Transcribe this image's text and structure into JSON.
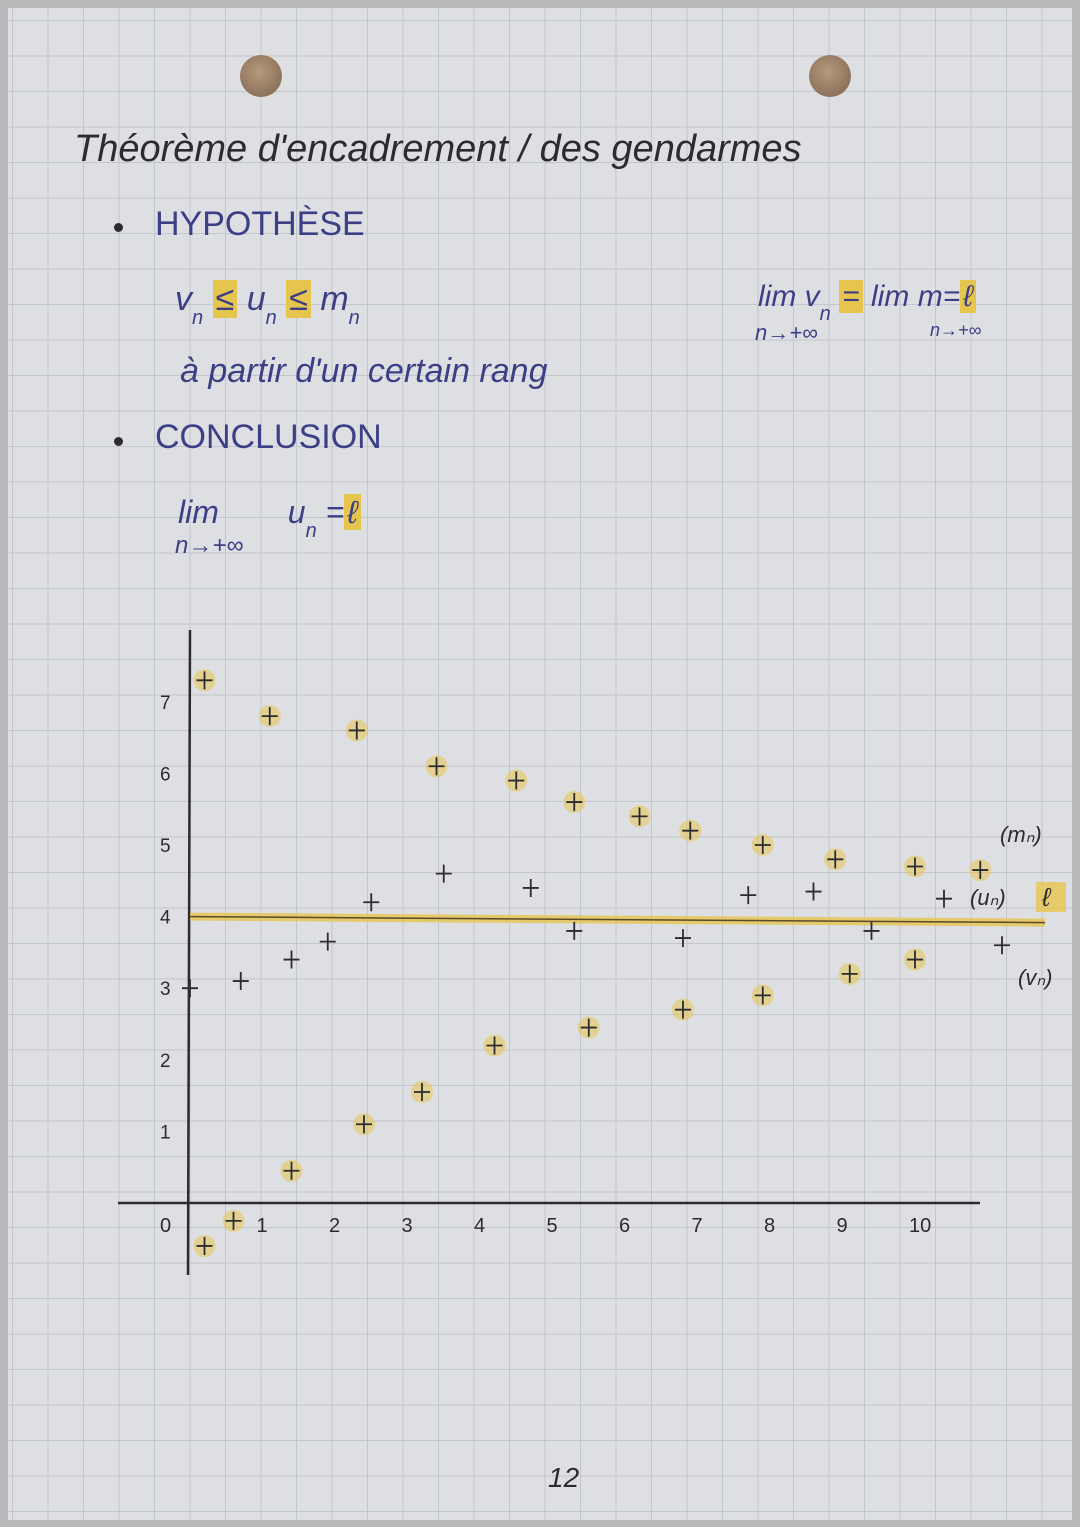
{
  "title": "Théorème d'encadrement / des gendarmes",
  "hypothesis": {
    "heading": "HYPOTHÈSE",
    "inequality": {
      "v": "v",
      "le1": "≤",
      "u": "u",
      "le2": "≤",
      "m": "m",
      "sub": "n"
    },
    "condition": "à partir d'un certain rang",
    "limits": {
      "lim1": "lim",
      "under1": "n→+∞",
      "v": "v",
      "sub": "n",
      "eq1": "=",
      "lim2": "lim",
      "under2": "n→+∞",
      "m": "m",
      "eq2": "=",
      "l": "ℓ"
    }
  },
  "conclusion": {
    "heading": "CONCLUSION",
    "lim": "lim",
    "under": "n→+∞",
    "u": "u",
    "sub": "n",
    "eq": "=",
    "l": "ℓ"
  },
  "page_number": "12",
  "colors": {
    "ink": "#2b2b30",
    "blue_ink": "#3b3f86",
    "highlight": "#e6c54e"
  },
  "chart_data": {
    "type": "scatter",
    "xlim": [
      0,
      11.2
    ],
    "ylim": [
      -1,
      7.8
    ],
    "x_ticks": [
      "0",
      "1",
      "2",
      "3",
      "4",
      "5",
      "6",
      "7",
      "8",
      "9",
      "10"
    ],
    "y_ticks": [
      "1",
      "2",
      "3",
      "4",
      "5",
      "6",
      "7"
    ],
    "limit_line": {
      "y": 4,
      "label": "ℓ"
    },
    "series": [
      {
        "name": "(mₙ)",
        "points": [
          [
            0.2,
            7.3
          ],
          [
            1.1,
            6.8
          ],
          [
            2.3,
            6.6
          ],
          [
            3.4,
            6.1
          ],
          [
            4.5,
            5.9
          ],
          [
            5.3,
            5.6
          ],
          [
            6.2,
            5.4
          ],
          [
            6.9,
            5.2
          ],
          [
            7.9,
            5.0
          ],
          [
            8.9,
            4.8
          ],
          [
            10.0,
            4.7
          ],
          [
            10.9,
            4.65
          ]
        ]
      },
      {
        "name": "(uₙ)",
        "points": [
          [
            0.0,
            3.0
          ],
          [
            0.7,
            3.1
          ],
          [
            1.4,
            3.4
          ],
          [
            1.9,
            3.65
          ],
          [
            2.5,
            4.2
          ],
          [
            3.5,
            4.6
          ],
          [
            4.7,
            4.4
          ],
          [
            5.3,
            3.8
          ],
          [
            6.8,
            3.7
          ],
          [
            7.7,
            4.3
          ],
          [
            8.6,
            4.35
          ],
          [
            9.4,
            3.8
          ],
          [
            10.4,
            4.25
          ],
          [
            11.2,
            3.6
          ]
        ]
      },
      {
        "name": "(vₙ)",
        "points": [
          [
            0.2,
            -0.6
          ],
          [
            0.6,
            -0.25
          ],
          [
            1.4,
            0.45
          ],
          [
            2.4,
            1.1
          ],
          [
            3.2,
            1.55
          ],
          [
            4.2,
            2.2
          ],
          [
            5.5,
            2.45
          ],
          [
            6.8,
            2.7
          ],
          [
            7.9,
            2.9
          ],
          [
            9.1,
            3.2
          ],
          [
            10.0,
            3.4
          ]
        ]
      }
    ]
  }
}
